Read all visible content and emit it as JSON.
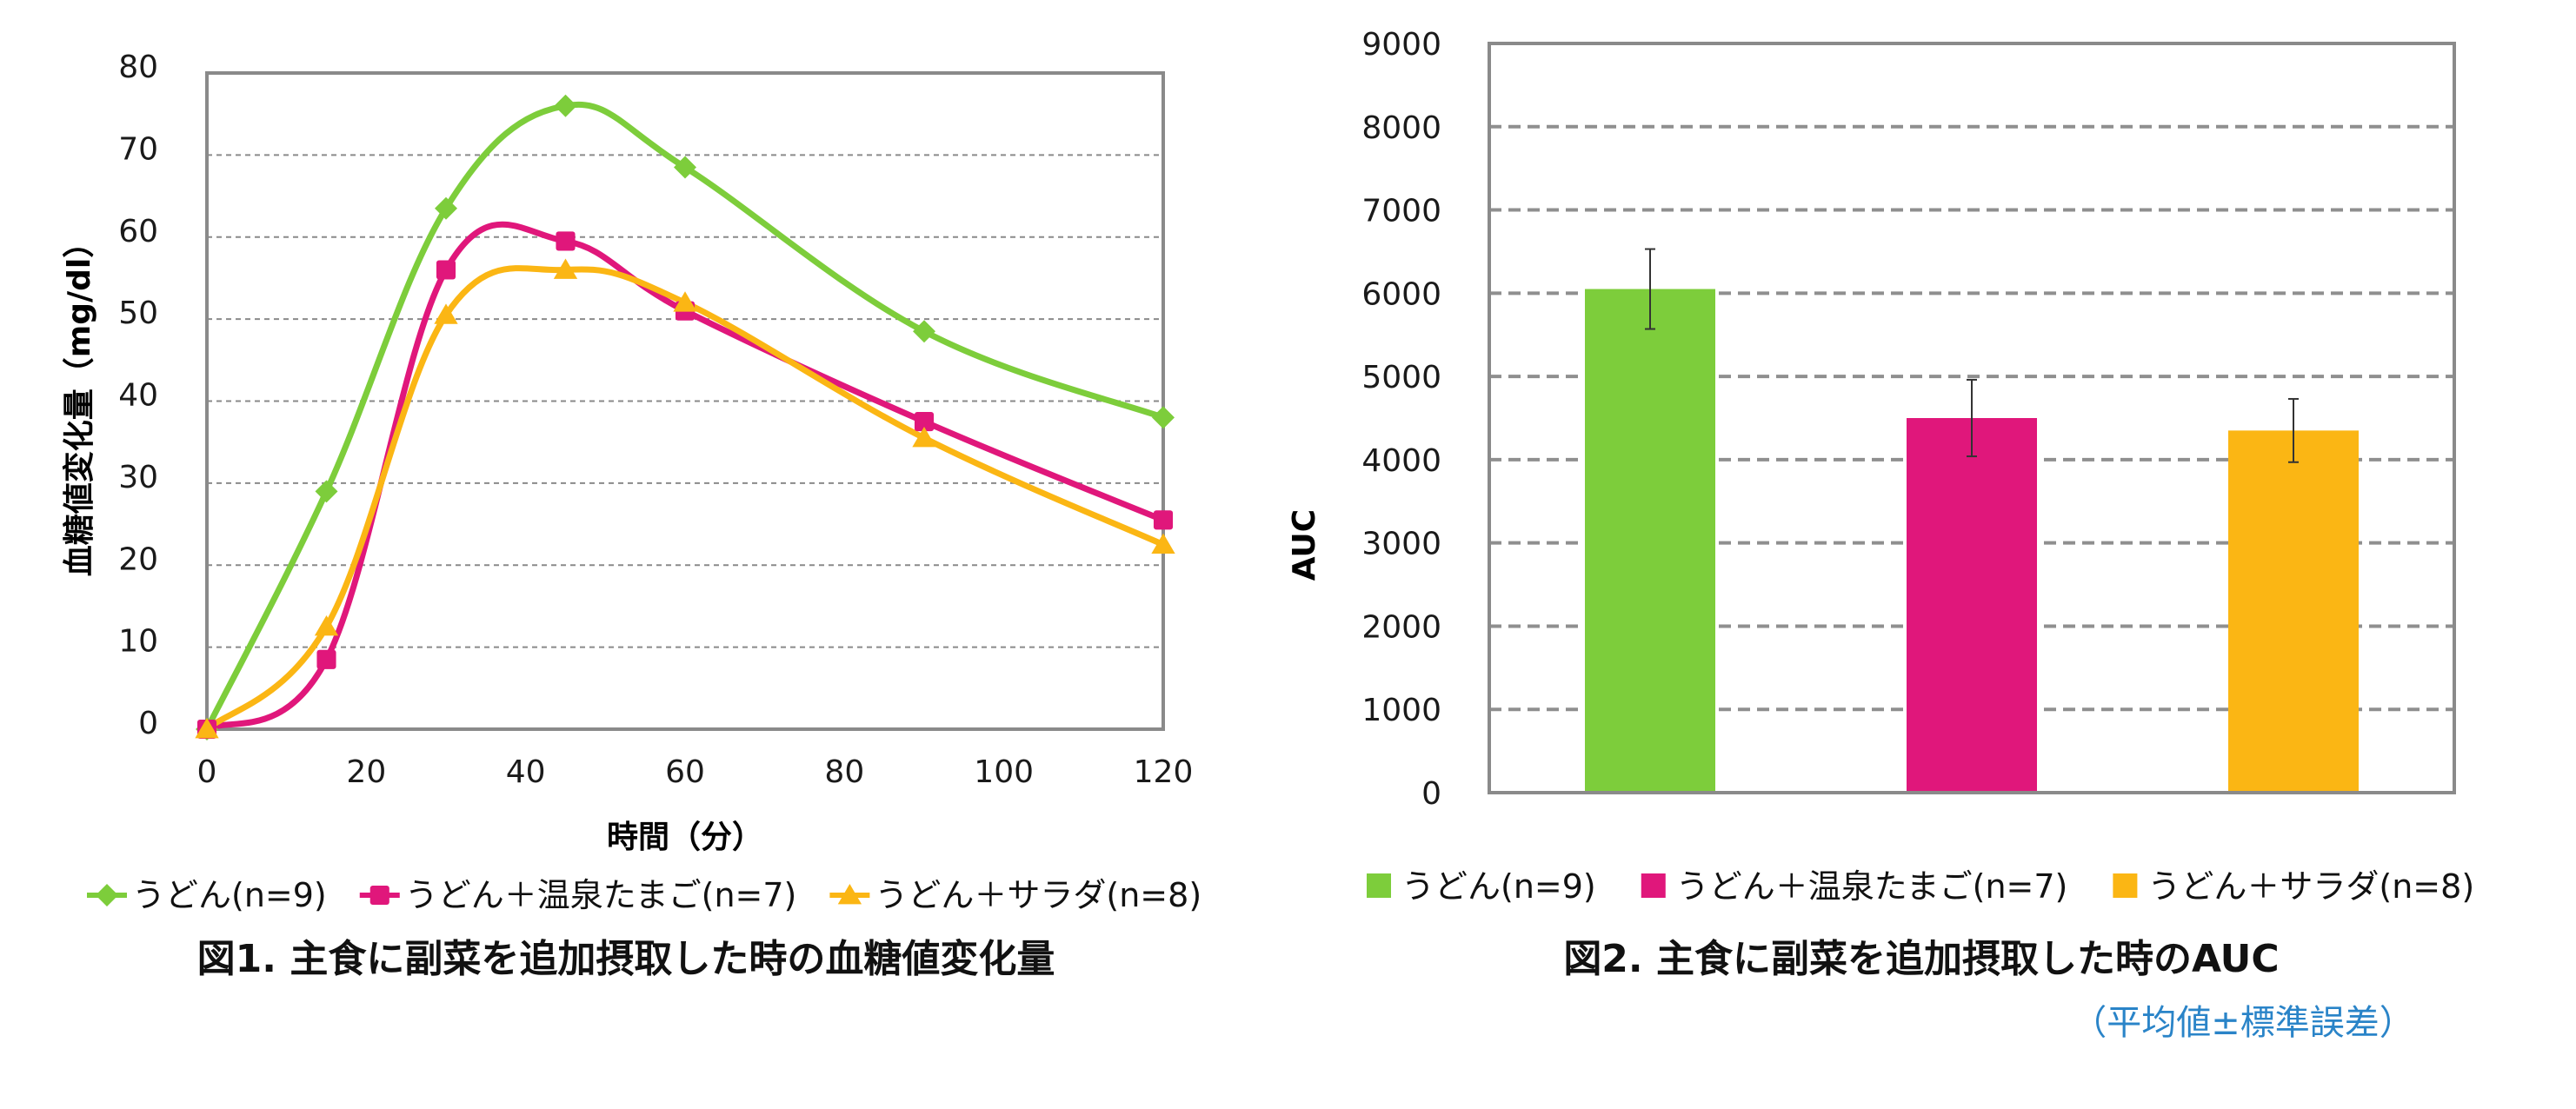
{
  "chart_data": [
    {
      "type": "line",
      "caption": "図1. 主食に副菜を追加摂取した時の血糖値変化量",
      "xlabel": "時間（分）",
      "ylabel": "血糖値変化量（mg/dl）",
      "xlim": [
        0,
        120
      ],
      "ylim": [
        0,
        80
      ],
      "xticks": [
        "0",
        "20",
        "40",
        "60",
        "80",
        "100",
        "120"
      ],
      "yticks": [
        "0",
        "10",
        "20",
        "30",
        "40",
        "50",
        "60",
        "70",
        "80"
      ],
      "grid": true,
      "legend_position": "bottom",
      "x": [
        0,
        15,
        30,
        45,
        60,
        90,
        120
      ],
      "series": [
        {
          "name": "うどん(n=9)",
          "color": "#7dcd3b",
          "marker": "diamond",
          "values": [
            0,
            29,
            63.5,
            76,
            68.5,
            48.5,
            38
          ]
        },
        {
          "name": "うどん＋温泉たまご(n=7)",
          "color": "#e0177b",
          "marker": "square",
          "values": [
            0,
            8.5,
            56,
            59.5,
            51,
            37.5,
            25.5
          ]
        },
        {
          "name": "うどん＋サラダ(n=8)",
          "color": "#fbb614",
          "marker": "triangle",
          "values": [
            0,
            12.5,
            50.5,
            56,
            52,
            35.5,
            22.5
          ]
        }
      ]
    },
    {
      "type": "bar",
      "caption": "図2. 主食に副菜を追加摂取した時のAUC",
      "note": "（平均値±標準誤差）",
      "xlabel": "",
      "ylabel": "AUC",
      "ylim": [
        0,
        9000
      ],
      "yticks": [
        "0",
        "1000",
        "2000",
        "3000",
        "4000",
        "5000",
        "6000",
        "7000",
        "8000",
        "9000"
      ],
      "grid": true,
      "legend_position": "bottom",
      "categories": [
        "うどん(n=9)",
        "うどん＋温泉たまご(n=7)",
        "うどん＋サラダ(n=8)"
      ],
      "values": [
        6050,
        4500,
        4350
      ],
      "errors": [
        480,
        460,
        380
      ],
      "colors": [
        "#7dcd3b",
        "#e0177b",
        "#fbb614"
      ]
    }
  ]
}
